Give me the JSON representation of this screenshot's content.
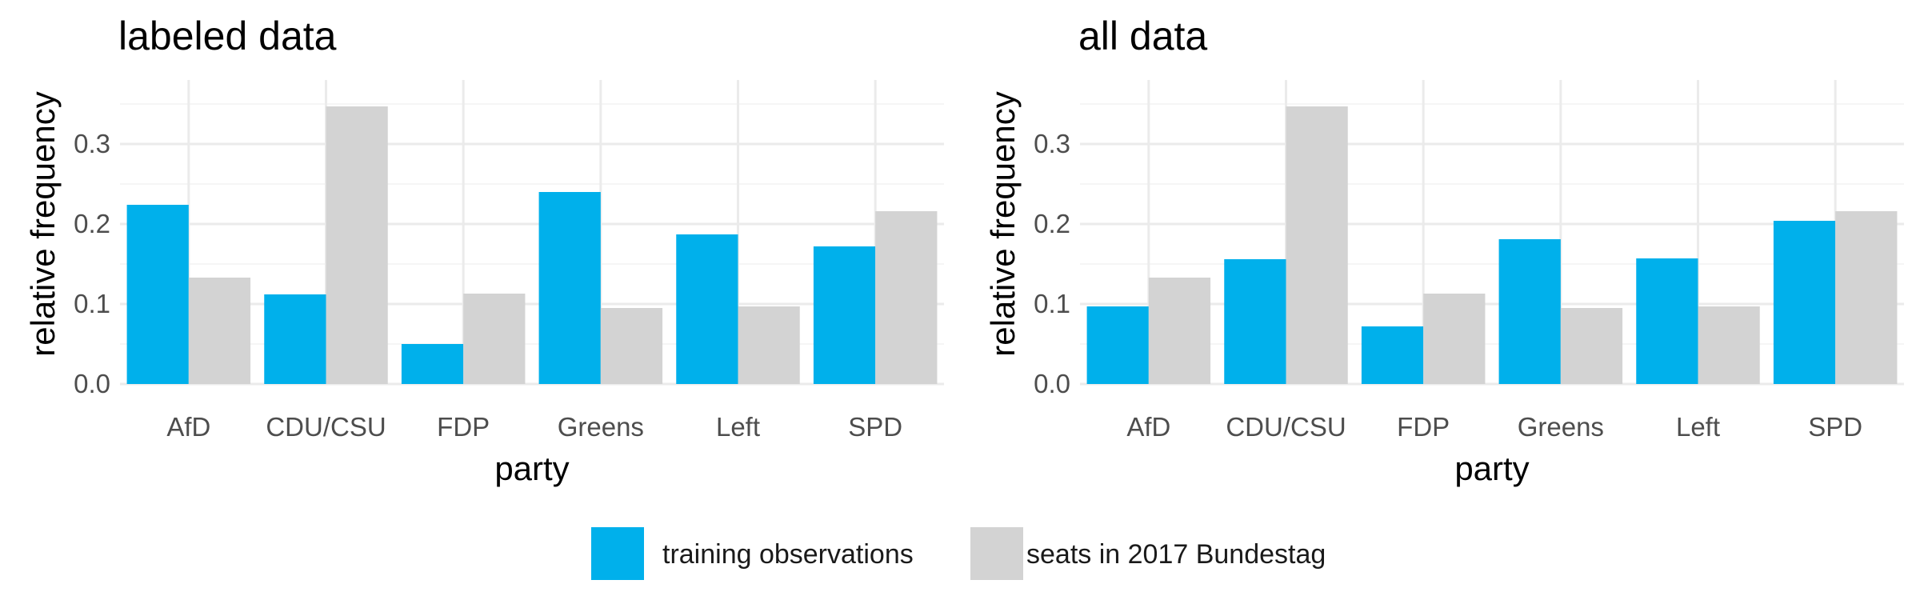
{
  "chart_data": [
    {
      "type": "bar",
      "title": "labeled data",
      "xlabel": "party",
      "ylabel": "relative frequency",
      "categories": [
        "AfD",
        "CDU/CSU",
        "FDP",
        "Greens",
        "Left",
        "SPD"
      ],
      "ylim": [
        0,
        0.35
      ],
      "yticks": [
        "0.0",
        "0.1",
        "0.2",
        "0.3"
      ],
      "grid": true,
      "series": [
        {
          "name": "training observations",
          "color": "#00b0eb",
          "values": [
            0.224,
            0.112,
            0.05,
            0.24,
            0.187,
            0.172
          ]
        },
        {
          "name": "seats in 2017 Bundestag",
          "color": "#d3d3d3",
          "values": [
            0.133,
            0.347,
            0.113,
            0.095,
            0.097,
            0.216
          ]
        }
      ]
    },
    {
      "type": "bar",
      "title": "all data",
      "xlabel": "party",
      "ylabel": "relative frequency",
      "categories": [
        "AfD",
        "CDU/CSU",
        "FDP",
        "Greens",
        "Left",
        "SPD"
      ],
      "ylim": [
        0,
        0.35
      ],
      "yticks": [
        "0.0",
        "0.1",
        "0.2",
        "0.3"
      ],
      "grid": true,
      "series": [
        {
          "name": "training observations",
          "color": "#00b0eb",
          "values": [
            0.097,
            0.156,
            0.072,
            0.181,
            0.157,
            0.204
          ]
        },
        {
          "name": "seats in 2017 Bundestag",
          "color": "#d3d3d3",
          "values": [
            0.133,
            0.347,
            0.113,
            0.095,
            0.097,
            0.216
          ]
        }
      ]
    }
  ],
  "legend": {
    "position": "bottom",
    "items": [
      {
        "label": "training observations",
        "color": "#00b0eb"
      },
      {
        "label": "seats in 2017 Bundestag",
        "color": "#d3d3d3"
      }
    ]
  }
}
